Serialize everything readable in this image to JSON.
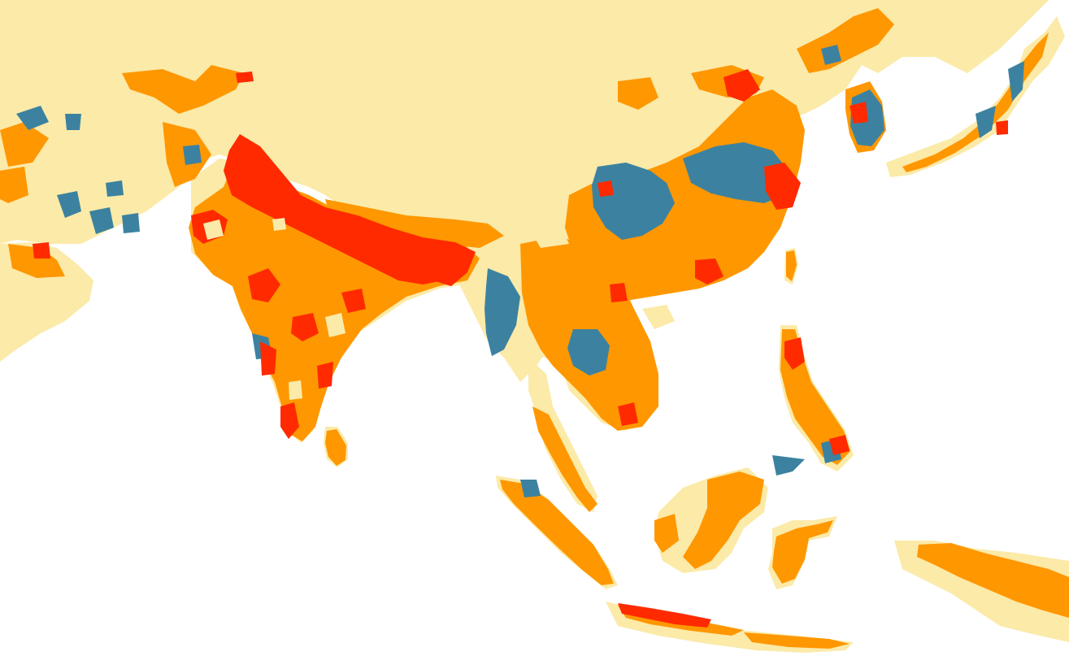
{
  "map": {
    "colors": {
      "ocean": "#ffffff",
      "class_1": "#fbeaa8",
      "class_2": "#ff9700",
      "class_3": "#ff2a00",
      "class_4": "#3c82a0"
    },
    "regions": [
      "land-mass",
      "india",
      "gangetic-plain",
      "sri-lanka",
      "indochina",
      "china",
      "korea",
      "japan",
      "taiwan",
      "philippines",
      "sumatra",
      "malay-peninsula",
      "borneo",
      "sulawesi",
      "java",
      "new-guinea",
      "arabian-peninsula"
    ]
  }
}
